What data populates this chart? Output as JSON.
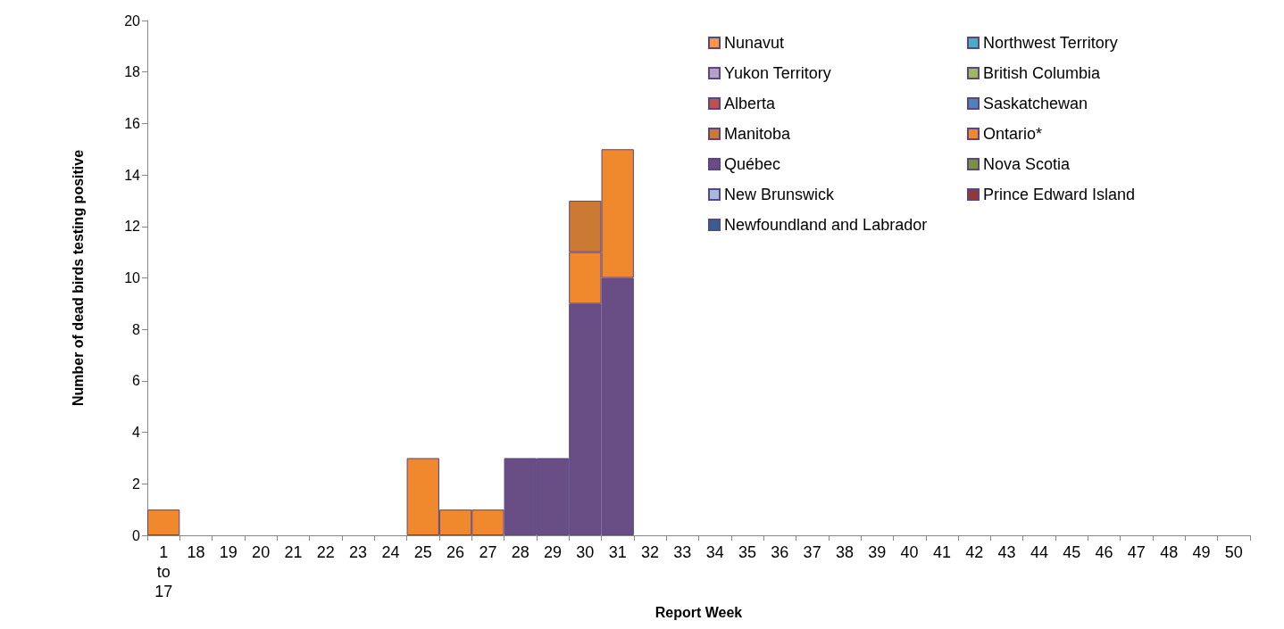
{
  "chart_data": {
    "type": "bar",
    "stacked": true,
    "xlabel": "Report Week",
    "ylabel": "Number of dead birds testing positive",
    "categories": [
      "1 to 17",
      "18",
      "19",
      "20",
      "21",
      "22",
      "23",
      "24",
      "25",
      "26",
      "27",
      "28",
      "29",
      "30",
      "31",
      "32",
      "33",
      "34",
      "35",
      "36",
      "37",
      "38",
      "39",
      "40",
      "41",
      "42",
      "43",
      "44",
      "45",
      "46",
      "47",
      "48",
      "49",
      "50"
    ],
    "series": [
      {
        "name": "Newfoundland and Labrador",
        "color": "#376092",
        "values": [
          0,
          0,
          0,
          0,
          0,
          0,
          0,
          0,
          0,
          0,
          0,
          0,
          0,
          0,
          0,
          0,
          0,
          0,
          0,
          0,
          0,
          0,
          0,
          0,
          0,
          0,
          0,
          0,
          0,
          0,
          0,
          0,
          0,
          0
        ]
      },
      {
        "name": "Prince Edward Island",
        "color": "#953735",
        "values": [
          0,
          0,
          0,
          0,
          0,
          0,
          0,
          0,
          0,
          0,
          0,
          0,
          0,
          0,
          0,
          0,
          0,
          0,
          0,
          0,
          0,
          0,
          0,
          0,
          0,
          0,
          0,
          0,
          0,
          0,
          0,
          0,
          0,
          0
        ]
      },
      {
        "name": "New Brunswick",
        "color": "#a6b9de",
        "values": [
          0,
          0,
          0,
          0,
          0,
          0,
          0,
          0,
          0,
          0,
          0,
          0,
          0,
          0,
          0,
          0,
          0,
          0,
          0,
          0,
          0,
          0,
          0,
          0,
          0,
          0,
          0,
          0,
          0,
          0,
          0,
          0,
          0,
          0
        ]
      },
      {
        "name": "Nova Scotia",
        "color": "#77933c",
        "values": [
          0,
          0,
          0,
          0,
          0,
          0,
          0,
          0,
          0,
          0,
          0,
          0,
          0,
          0,
          0,
          0,
          0,
          0,
          0,
          0,
          0,
          0,
          0,
          0,
          0,
          0,
          0,
          0,
          0,
          0,
          0,
          0,
          0,
          0
        ]
      },
      {
        "name": "Québec",
        "color": "#684e84",
        "values": [
          0,
          0,
          0,
          0,
          0,
          0,
          0,
          0,
          0,
          0,
          0,
          3,
          3,
          9,
          10,
          0,
          0,
          0,
          0,
          0,
          0,
          0,
          0,
          0,
          0,
          0,
          0,
          0,
          0,
          0,
          0,
          0,
          0,
          0
        ]
      },
      {
        "name": "Ontario*",
        "color": "#f0882e",
        "values": [
          1,
          0,
          0,
          0,
          0,
          0,
          0,
          0,
          3,
          1,
          1,
          0,
          0,
          2,
          5,
          0,
          0,
          0,
          0,
          0,
          0,
          0,
          0,
          0,
          0,
          0,
          0,
          0,
          0,
          0,
          0,
          0,
          0,
          0
        ]
      },
      {
        "name": "Manitoba",
        "color": "#cc7a33",
        "values": [
          0,
          0,
          0,
          0,
          0,
          0,
          0,
          0,
          0,
          0,
          0,
          0,
          0,
          2,
          0,
          0,
          0,
          0,
          0,
          0,
          0,
          0,
          0,
          0,
          0,
          0,
          0,
          0,
          0,
          0,
          0,
          0,
          0,
          0
        ]
      },
      {
        "name": "Saskatchewan",
        "color": "#4f81bd",
        "values": [
          0,
          0,
          0,
          0,
          0,
          0,
          0,
          0,
          0,
          0,
          0,
          0,
          0,
          0,
          0,
          0,
          0,
          0,
          0,
          0,
          0,
          0,
          0,
          0,
          0,
          0,
          0,
          0,
          0,
          0,
          0,
          0,
          0,
          0
        ]
      },
      {
        "name": "Alberta",
        "color": "#c0504d",
        "values": [
          0,
          0,
          0,
          0,
          0,
          0,
          0,
          0,
          0,
          0,
          0,
          0,
          0,
          0,
          0,
          0,
          0,
          0,
          0,
          0,
          0,
          0,
          0,
          0,
          0,
          0,
          0,
          0,
          0,
          0,
          0,
          0,
          0,
          0
        ]
      },
      {
        "name": "British Columbia",
        "color": "#9bbb59",
        "values": [
          0,
          0,
          0,
          0,
          0,
          0,
          0,
          0,
          0,
          0,
          0,
          0,
          0,
          0,
          0,
          0,
          0,
          0,
          0,
          0,
          0,
          0,
          0,
          0,
          0,
          0,
          0,
          0,
          0,
          0,
          0,
          0,
          0,
          0
        ]
      },
      {
        "name": "Yukon Territory",
        "color": "#b3a2c7",
        "values": [
          0,
          0,
          0,
          0,
          0,
          0,
          0,
          0,
          0,
          0,
          0,
          0,
          0,
          0,
          0,
          0,
          0,
          0,
          0,
          0,
          0,
          0,
          0,
          0,
          0,
          0,
          0,
          0,
          0,
          0,
          0,
          0,
          0,
          0
        ]
      },
      {
        "name": "Northwest Territory",
        "color": "#4bacc6",
        "values": [
          0,
          0,
          0,
          0,
          0,
          0,
          0,
          0,
          0,
          0,
          0,
          0,
          0,
          0,
          0,
          0,
          0,
          0,
          0,
          0,
          0,
          0,
          0,
          0,
          0,
          0,
          0,
          0,
          0,
          0,
          0,
          0,
          0,
          0
        ]
      },
      {
        "name": "Nunavut",
        "color": "#f79646",
        "values": [
          0,
          0,
          0,
          0,
          0,
          0,
          0,
          0,
          0,
          0,
          0,
          0,
          0,
          0,
          0,
          0,
          0,
          0,
          0,
          0,
          0,
          0,
          0,
          0,
          0,
          0,
          0,
          0,
          0,
          0,
          0,
          0,
          0,
          0
        ]
      }
    ],
    "ylim": [
      0,
      20
    ],
    "yticks": [
      0,
      2,
      4,
      6,
      8,
      10,
      12,
      14,
      16,
      18,
      20
    ],
    "grid": false,
    "legend": "top right"
  }
}
